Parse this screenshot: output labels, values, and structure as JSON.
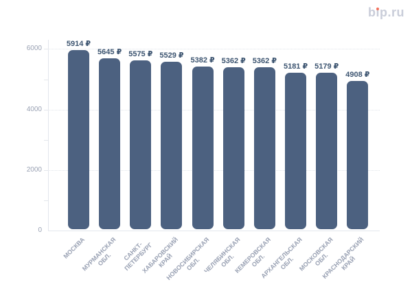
{
  "site": {
    "logo_text": "bip.ru",
    "logo_pre": "b",
    "logo_i_stem": "ı",
    "logo_post": "p.ru"
  },
  "colors": {
    "bar": "#4c6180",
    "value_label": "#3c5470",
    "axis_label": "#99a1b3",
    "grid_line": "#e0e4ea",
    "axis_line": "#e3e6ec",
    "logo_text": "#c9cdd9",
    "logo_dot": "#f2705b",
    "background": "#ffffff"
  },
  "chart_data": {
    "type": "bar",
    "title": "",
    "xlabel": "",
    "ylabel": "",
    "categories": [
      "МОСКВА",
      "МУРМАНСКАЯ ОБЛ.",
      "САНКТ-ПЕТЕРБУРГ",
      "ХАБАРОВСКИЙ КРАЙ",
      "НОВОСИБИРСКАЯ ОБЛ.",
      "ЧЕЛЯБИНСКАЯ ОБЛ.",
      "КЕМЕРОВСКАЯ ОБЛ.",
      "АРХАНГЕЛЬСКАЯ ОБЛ.",
      "МОСКОВСКАЯ ОБЛ.",
      "КРАСНОДАРСКИЙ КРАЙ"
    ],
    "category_lines": [
      [
        "МОСКВА"
      ],
      [
        "МУРМАНСКАЯ",
        "ОБЛ."
      ],
      [
        "САНКТ-",
        "ПЕТЕРБУРГ"
      ],
      [
        "ХАБАРОВСКИЙ",
        "КРАЙ"
      ],
      [
        "НОВОСИБИРСКАЯ",
        "ОБЛ."
      ],
      [
        "ЧЕЛЯБИНСКАЯ",
        "ОБЛ."
      ],
      [
        "КЕМЕРОВСКАЯ",
        "ОБЛ."
      ],
      [
        "АРХАНГЕЛЬСКАЯ",
        "ОБЛ."
      ],
      [
        "МОСКОВСКАЯ",
        "ОБЛ."
      ],
      [
        "КРАСНОДАРСКИЙ",
        "КРАЙ"
      ]
    ],
    "values": [
      5914,
      5645,
      5575,
      5529,
      5382,
      5362,
      5362,
      5181,
      5179,
      4908
    ],
    "value_labels": [
      "5914 ₽",
      "5645 ₽",
      "5575 ₽",
      "5529 ₽",
      "5382 ₽",
      "5362 ₽",
      "5362 ₽",
      "5181 ₽",
      "5179 ₽",
      "4908 ₽"
    ],
    "value_suffix": "₽",
    "ylim": [
      0,
      6000
    ],
    "yticks": [
      0,
      2000,
      4000,
      6000
    ],
    "ytick_labels": [
      "0",
      "2000",
      "4000",
      "6000"
    ],
    "minor_yticks": [
      1000,
      3000,
      5000
    ],
    "grid": "horizontal dotted lines at labeled ticks",
    "legend": "none",
    "x_label_rotation_deg": -45
  }
}
